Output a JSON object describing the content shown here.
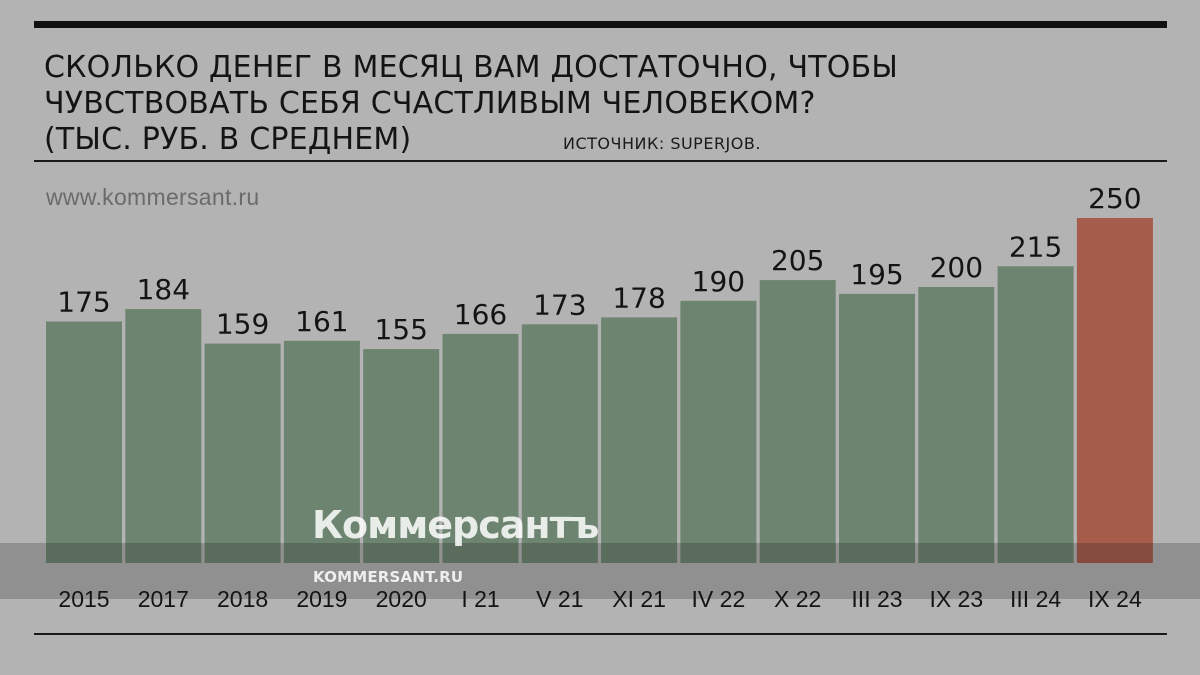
{
  "header": {
    "title_lines": [
      "СКОЛЬКО ДЕНЕГ В МЕСЯЦ ВАМ ДОСТАТОЧНО, ЧТОБЫ",
      "ЧУВСТВОВАТЬ СЕБЯ СЧАСТЛИВЫМ ЧЕЛОВЕКОМ?",
      "(ТЫС. РУБ. В СРЕДНЕМ)"
    ],
    "source": "ИСТОЧНИК: SUPERJOB.",
    "site_url": "www.kommersant.ru"
  },
  "watermark": {
    "logo": "Коммерсантъ",
    "url": "KOMMERSANT.RU"
  },
  "colors": {
    "bar": "#6d8470",
    "highlight_bar": "#a65c4b",
    "background": "#b3b3b3",
    "text": "#141414"
  },
  "chart_data": {
    "type": "bar",
    "title": "СКОЛЬКО ДЕНЕГ В МЕСЯЦ ВАМ ДОСТАТОЧНО, ЧТОБЫ ЧУВСТВОВАТЬ СЕБЯ СЧАСТЛИВЫМ ЧЕЛОВЕКОМ? (ТЫС. РУБ. В СРЕДНЕМ)",
    "categories": [
      "2015",
      "2017",
      "2018",
      "2019",
      "2020",
      "I 21",
      "V 21",
      "XI 21",
      "IV 22",
      "X 22",
      "III 23",
      "IX 23",
      "III 24",
      "IX 24"
    ],
    "values": [
      175,
      184,
      159,
      161,
      155,
      166,
      173,
      178,
      190,
      205,
      195,
      200,
      215,
      250
    ],
    "highlight": [
      "IX 24"
    ],
    "xlabel": "",
    "ylabel": "",
    "ylim": [
      0,
      250
    ],
    "grid": false,
    "legend": "none",
    "data_labels": true
  }
}
